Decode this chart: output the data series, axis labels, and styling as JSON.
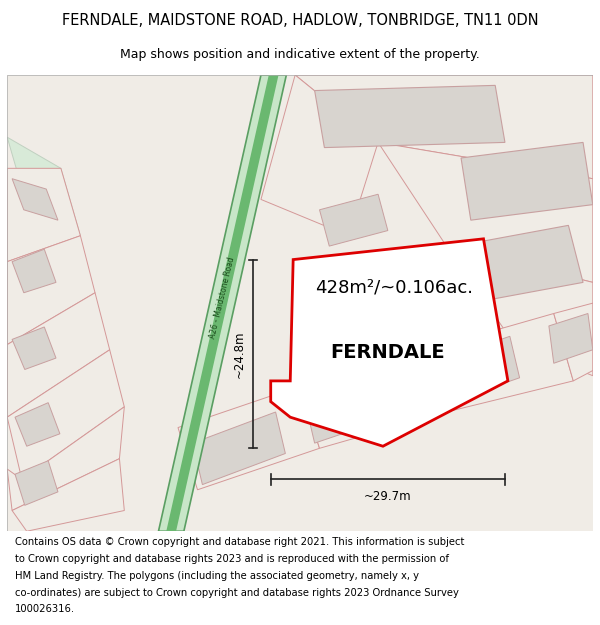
{
  "title": "FERNDALE, MAIDSTONE ROAD, HADLOW, TONBRIDGE, TN11 0DN",
  "subtitle": "Map shows position and indicative extent of the property.",
  "area_label": "428m²/~0.106ac.",
  "property_label": "FERNDALE",
  "width_label": "~29.7m",
  "height_label": "~24.8m",
  "road_label": "A26 - Maidstone Road",
  "footer_lines": [
    "Contains OS data © Crown copyright and database right 2021. This information is subject",
    "to Crown copyright and database rights 2023 and is reproduced with the permission of",
    "HM Land Registry. The polygons (including the associated geometry, namely x, y",
    "co-ordinates) are subject to Crown copyright and database rights 2023 Ordnance Survey",
    "100026316."
  ],
  "map_bg": "#f0ece6",
  "road_green_fill": "#c8e6c8",
  "road_green_center": "#6ab870",
  "road_green_edge": "#5a9e62",
  "property_outline": "#dd0000",
  "building_fill": "#d8d4cf",
  "building_stroke": "#c8a0a0",
  "plot_stroke": "#d49898",
  "dim_color": "#222222",
  "title_fs": 10.5,
  "subtitle_fs": 9.0,
  "footer_fs": 7.2,
  "area_fs": 13,
  "prop_label_fs": 14,
  "dim_fs": 8.5,
  "road_label_fs": 5.5
}
